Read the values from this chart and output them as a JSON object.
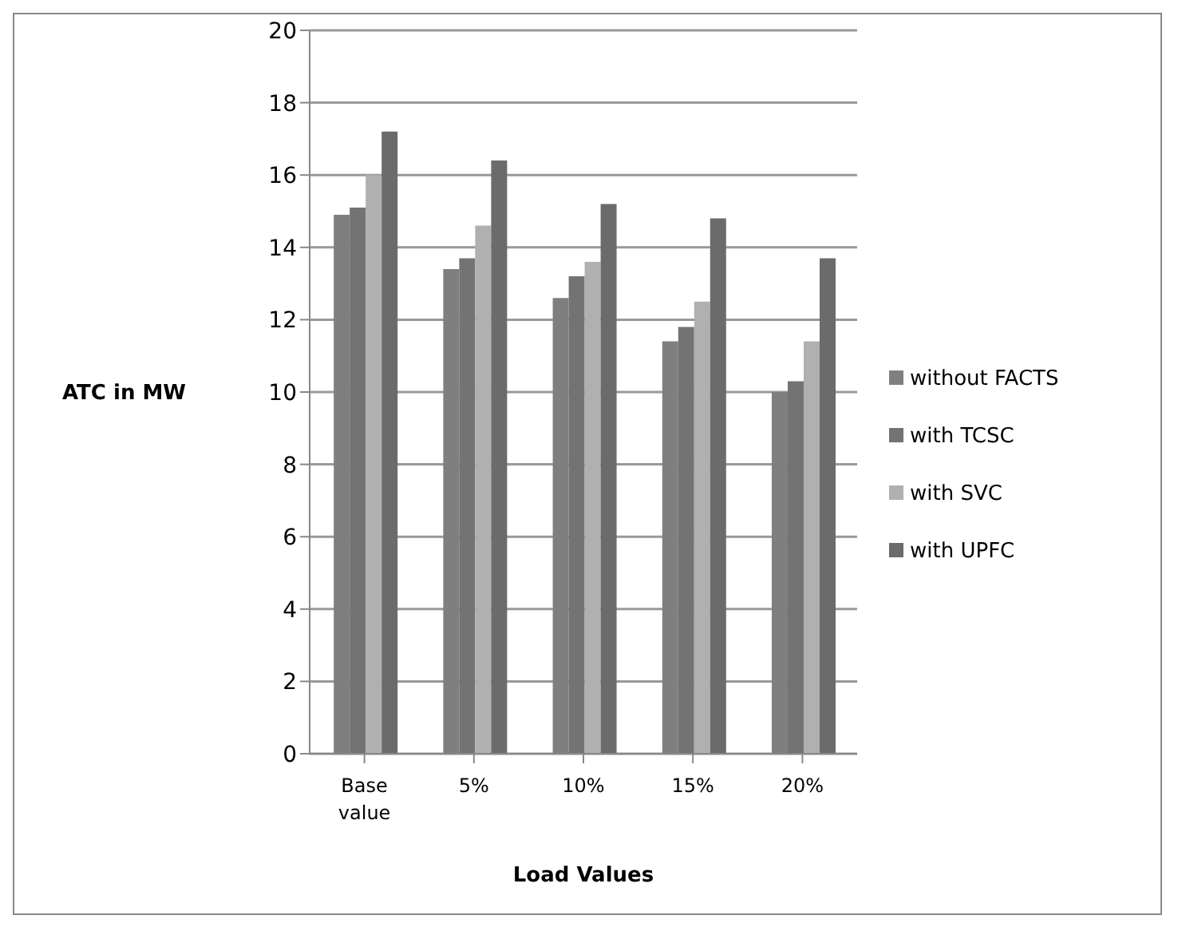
{
  "chart_data": {
    "type": "bar",
    "xlabel": "Load Values",
    "ylabel": "ATC in MW",
    "categories": [
      "Base value",
      "5%",
      "10%",
      "15%",
      "20%"
    ],
    "series": [
      {
        "name": "without FACTS",
        "color": "#7f7f7f",
        "values": [
          14.9,
          13.4,
          12.6,
          11.4,
          10.0
        ]
      },
      {
        "name": "with TCSC",
        "color": "#737373",
        "values": [
          15.1,
          13.7,
          13.2,
          11.8,
          10.3
        ]
      },
      {
        "name": "with SVC",
        "color": "#b0b0b0",
        "values": [
          16.0,
          14.6,
          13.6,
          12.5,
          11.4
        ]
      },
      {
        "name": "with UPFC",
        "color": "#6b6b6b",
        "values": [
          17.2,
          16.4,
          15.2,
          14.8,
          13.7
        ]
      }
    ],
    "ylim": [
      0,
      20
    ],
    "yticks": [
      0,
      2,
      4,
      6,
      8,
      10,
      12,
      14,
      16,
      18,
      20
    ],
    "grid": "y",
    "legend": "right"
  }
}
